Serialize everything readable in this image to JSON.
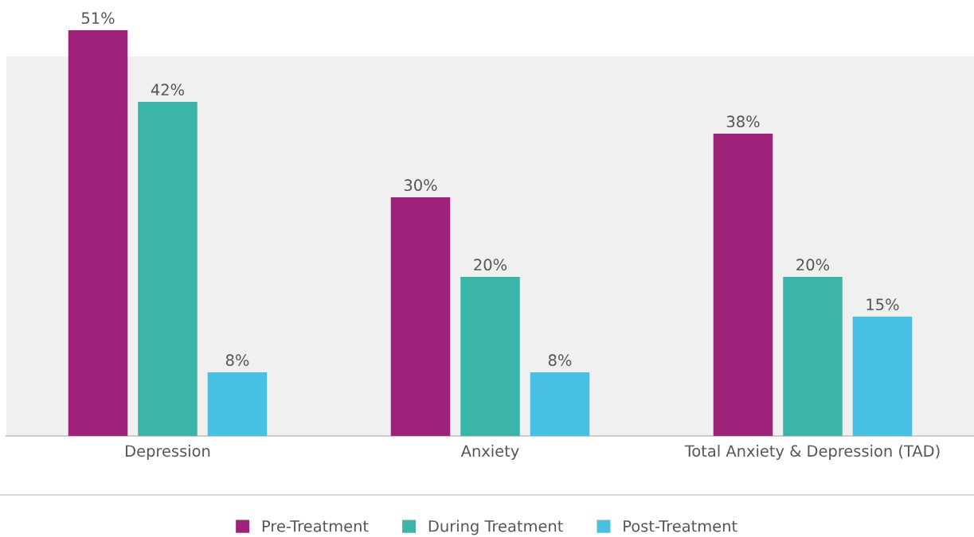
{
  "chart_data": {
    "type": "bar",
    "categories": [
      "Depression",
      "Anxiety",
      "Total Anxiety & Depression (TAD)"
    ],
    "series": [
      {
        "name": "Pre-Treatment",
        "color": "#9e227a",
        "values": [
          51,
          30,
          38
        ],
        "value_labels": [
          "51%",
          "30%",
          "38%"
        ]
      },
      {
        "name": "During Treatment",
        "color": "#3bb5a9",
        "values": [
          42,
          20,
          20
        ],
        "value_labels": [
          "42%",
          "20%",
          "20%"
        ]
      },
      {
        "name": "Post-Treatment",
        "color": "#48c0e3",
        "values": [
          8,
          8,
          15
        ],
        "value_labels": [
          "8%",
          "8%",
          "15%"
        ]
      }
    ],
    "tick_labels": "x",
    "grid": false,
    "legend": "bottom"
  }
}
